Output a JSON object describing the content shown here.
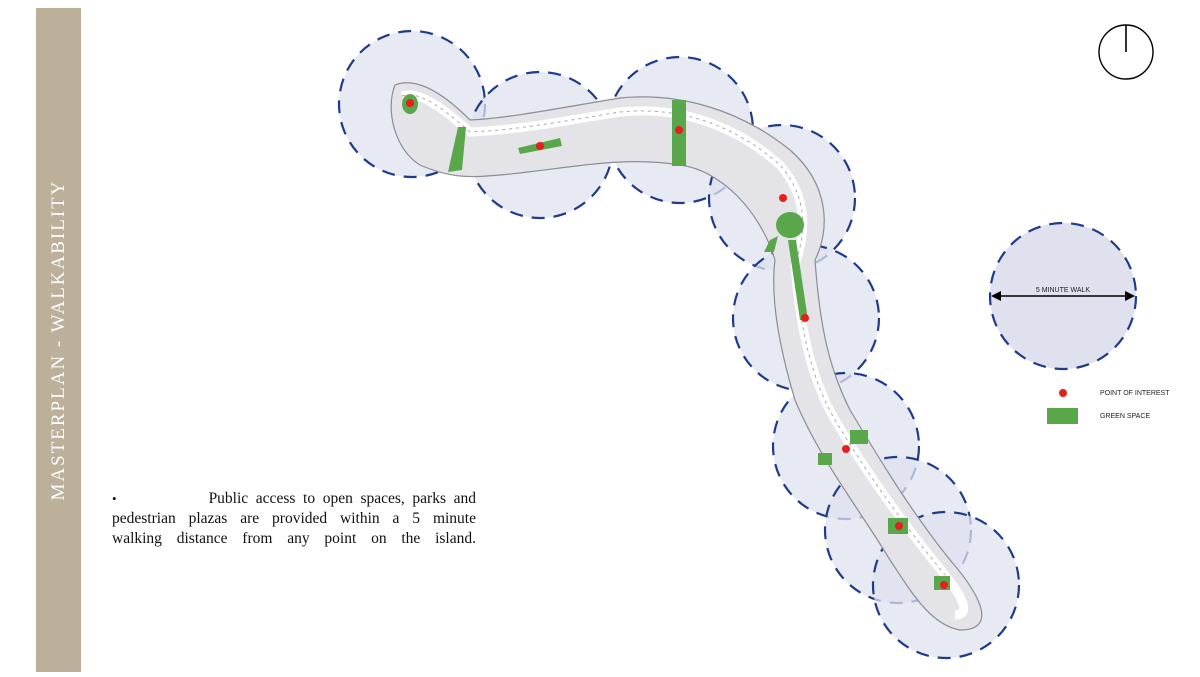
{
  "sidebar": {
    "title": "MASTERPLAN - WALKABILITY"
  },
  "description": {
    "bullet": "•",
    "lines": [
      "Public access to open spaces, parks and",
      "pedestrian plazas are provided within a 5 minute",
      "walking distance from any point on the island."
    ]
  },
  "legend": {
    "walk_label": "5 MINUTE WALK",
    "poi_label": "POINT OF INTEREST",
    "green_label": "GREEN SPACE"
  },
  "colors": {
    "sidebar": "#bcb09b",
    "walk_circle_fill": "#dfe1ef",
    "walk_circle_stroke": "#1f3b8a",
    "point_of_interest": "#e4201f",
    "green_space": "#5aa64a"
  },
  "icons": {
    "compass": "north-arrow-icon"
  }
}
